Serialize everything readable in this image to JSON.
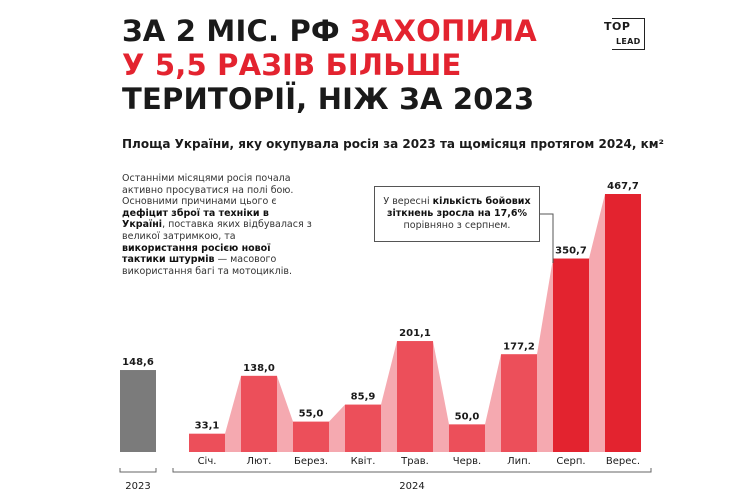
{
  "header": {
    "title_line1_black": "ЗА 2 МІС. РФ ",
    "title_line1_red": "ЗАХОПИЛА",
    "title_line2_red": "У 5,5 РАЗІВ БІЛЬШЕ",
    "title_line3_black": "ТЕРИТОРІЇ, НІЖ ЗА 2023",
    "logo_top": "TOP",
    "logo_bottom": "LEAD"
  },
  "subtitle": "Площа України, яку окупувала росія за 2023 та щомісяця протягом 2024, км²",
  "description": {
    "p1": "Останніми місяцями росія почала активно просуватися на полі бою. Основними причинами цього є ",
    "b1": "дефіцит зброї та техніки в Україні",
    "p2": ", поставка яких відбувалася з великої затримкою, та ",
    "b2": "використання росією нової тактики штурмів",
    "p3": " — масового використання багі та мотоциклів."
  },
  "note": {
    "t1": "У вересні ",
    "b1": "кількість бойових зіткнень зросла на 17,6%",
    "t2": " порівняно з серпнем."
  },
  "colors": {
    "gray": "#7b7b7b",
    "dark_red": "#e3232f",
    "mid_red": "#ec4f5a",
    "light_red": "#f4a0a7",
    "connector": "#f5a9b0"
  },
  "chart_data": {
    "type": "bar",
    "unit": "км²",
    "baseline": {
      "category": "2023",
      "value": 148.6,
      "label": "148,6"
    },
    "group_label": "2024",
    "categories": [
      "Січ.",
      "Лют.",
      "Берез.",
      "Квіт.",
      "Трав.",
      "Черв.",
      "Лип.",
      "Серп.",
      "Верес."
    ],
    "values": [
      33.1,
      138.0,
      55.0,
      85.9,
      201.1,
      50.0,
      177.2,
      350.7,
      467.7
    ],
    "labels": [
      "33,1",
      "138,0",
      "55,0",
      "85,9",
      "201,1",
      "50,0",
      "177,2",
      "350,7",
      "467,7"
    ],
    "ylim": [
      0,
      480
    ]
  }
}
